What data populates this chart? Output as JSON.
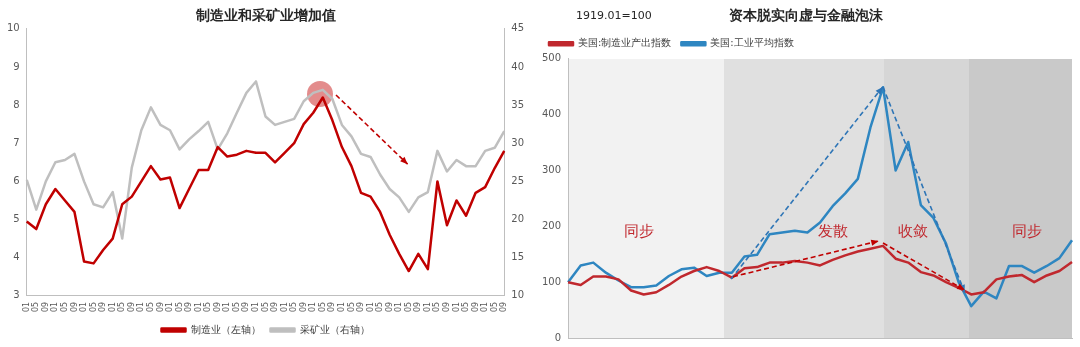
{
  "chart_data": [
    {
      "type": "line",
      "title": "制造业和采矿业增加值",
      "categories": [
        "01",
        "05",
        "09",
        "01",
        "05",
        "09",
        "01",
        "05",
        "09",
        "01",
        "05",
        "09",
        "01",
        "05",
        "09",
        "01",
        "05",
        "09",
        "01",
        "05",
        "09",
        "01",
        "05",
        "09",
        "01",
        "05",
        "09",
        "01",
        "05",
        "09",
        "01",
        "05",
        "09",
        "01",
        "05",
        "09",
        "01",
        "05",
        "09",
        "01",
        "05",
        "09",
        "01",
        "05",
        "09",
        "01",
        "05",
        "09",
        "01",
        "05",
        "09"
      ],
      "series": [
        {
          "name": "制造业（左轴）",
          "color": "#c00000",
          "values": [
            4.95,
            4.75,
            5.4,
            5.8,
            5.5,
            5.2,
            3.9,
            3.85,
            4.2,
            4.5,
            5.4,
            5.6,
            6.0,
            6.4,
            6.05,
            6.1,
            5.3,
            5.8,
            6.3,
            6.3,
            6.9,
            6.65,
            6.7,
            6.8,
            6.75,
            6.75,
            6.5,
            6.75,
            7.0,
            7.5,
            7.8,
            8.2,
            7.6,
            6.9,
            6.4,
            5.7,
            5.6,
            5.2,
            4.6,
            4.1,
            3.65,
            4.1,
            3.7,
            6.0,
            4.85,
            5.5,
            5.1,
            5.7,
            5.85,
            6.35,
            6.8
          ]
        },
        {
          "name": "采矿业（右轴）",
          "color": "#bfbfbf",
          "axis": "y2",
          "values": [
            25.2,
            21.3,
            25,
            27.5,
            27.8,
            28.6,
            25,
            22,
            21.6,
            23.6,
            17.5,
            26.8,
            31.7,
            34.7,
            32.4,
            31.7,
            29.2,
            30.5,
            31.6,
            32.8,
            29.2,
            31.3,
            34,
            36.6,
            38.1,
            33.5,
            32.4,
            32.8,
            33.2,
            35.5,
            36.6,
            37,
            35.8,
            32.4,
            30.9,
            28.6,
            28.2,
            25.9,
            24,
            22.9,
            21,
            22.9,
            23.6,
            29,
            26.3,
            27.8,
            27,
            27,
            29,
            29.4,
            31.6
          ]
        }
      ],
      "ylim": [
        3,
        10
      ],
      "yticks": [
        3,
        4,
        5,
        6,
        7,
        8,
        9,
        10
      ],
      "y2lim": [
        10,
        45
      ],
      "y2ticks": [
        10,
        15,
        20,
        25,
        30,
        35,
        40,
        45
      ],
      "legend": "bottom",
      "marker": "none"
    },
    {
      "type": "line",
      "title": "资本脱实向虚与金融泡沫",
      "annotations": [
        "1919.01=100",
        "同步",
        "发散",
        "收敛",
        "同步"
      ],
      "categories": [
        null,
        null,
        null,
        null,
        null,
        null,
        null,
        null,
        null,
        null,
        null,
        null,
        null,
        null,
        null,
        null,
        null,
        null,
        null,
        null,
        null,
        null,
        null,
        null,
        null,
        null,
        null,
        null,
        null,
        null,
        null,
        null,
        null,
        null,
        null,
        null,
        null,
        null,
        null,
        null,
        null
      ],
      "series": [
        {
          "name": "美国:制造业产出指数",
          "color": "#c0282e",
          "values": [
            100,
            95,
            110,
            110,
            105,
            85,
            78,
            82,
            95,
            110,
            120,
            127,
            120,
            108,
            125,
            127,
            135,
            135,
            138,
            135,
            130,
            140,
            148,
            155,
            160,
            165,
            142,
            135,
            118,
            112,
            100,
            90,
            78,
            82,
            105,
            110,
            113,
            100,
            112,
            120,
            136
          ]
        },
        {
          "name": "美国:工业平均指数",
          "color": "#2e86c1",
          "values": [
            100,
            130,
            135,
            117,
            103,
            91,
            91,
            94,
            111,
            123,
            126,
            111,
            117,
            117,
            146,
            149,
            186,
            189,
            192,
            189,
            207,
            236,
            259,
            285,
            377,
            449,
            300,
            351,
            238,
            215,
            169,
            100,
            57,
            83,
            71,
            129,
            129,
            117,
            129,
            143,
            175
          ]
        }
      ],
      "ylim": [
        0,
        500
      ],
      "yticks": [
        0,
        100,
        200,
        300,
        400,
        500
      ],
      "tick_labels": "y",
      "legend": "top left",
      "marker": "none"
    }
  ]
}
